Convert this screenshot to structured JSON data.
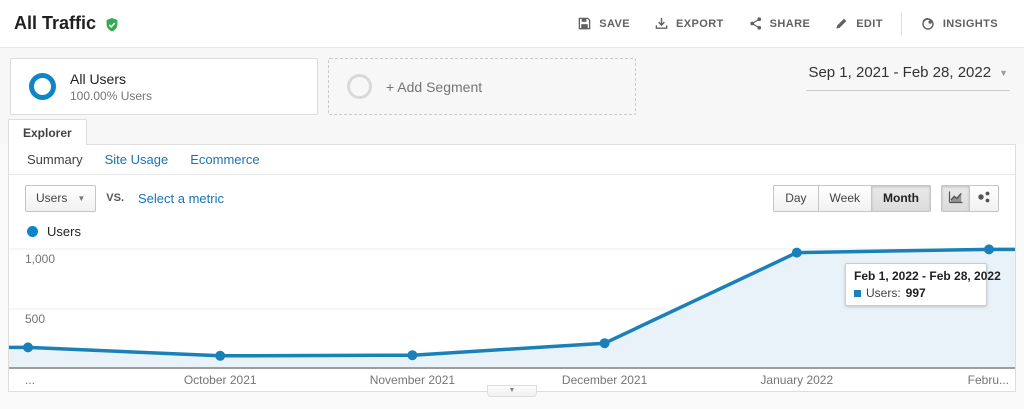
{
  "header": {
    "title": "All Traffic",
    "toolbar": [
      {
        "label": "SAVE"
      },
      {
        "label": "EXPORT"
      },
      {
        "label": "SHARE"
      },
      {
        "label": "EDIT"
      },
      {
        "label": "INSIGHTS"
      }
    ]
  },
  "segments": {
    "all_users": {
      "title": "All Users",
      "subtitle": "100.00% Users"
    },
    "add_segment": {
      "label": "+ Add Segment"
    }
  },
  "date_range": {
    "label": "Sep 1, 2021 - Feb 28, 2022"
  },
  "tabs": {
    "explorer": "Explorer"
  },
  "subnav": [
    {
      "label": "Summary"
    },
    {
      "label": "Site Usage"
    },
    {
      "label": "Ecommerce"
    }
  ],
  "controls": {
    "metric_selector": "Users",
    "vs_label": "vs.",
    "select_metric_label": "Select a metric",
    "granularity": [
      "Day",
      "Week",
      "Month"
    ],
    "granularity_active": "Month"
  },
  "legend": {
    "label": "Users"
  },
  "tooltip": {
    "title": "Feb 1, 2022 - Feb 28, 2022",
    "series_label": "Users:",
    "value": "997"
  },
  "chart_data": {
    "type": "line",
    "x": [
      "Sep 2021",
      "Oct 2021",
      "Nov 2021",
      "Dec 2021",
      "Jan 2022",
      "Feb 2022"
    ],
    "x_tick_labels": [
      "...",
      "October 2021",
      "November 2021",
      "December 2021",
      "January 2022",
      "Febru..."
    ],
    "series": [
      {
        "name": "Users",
        "values": [
          180,
          110,
          115,
          215,
          970,
          997
        ]
      }
    ],
    "ylim": [
      0,
      1000
    ],
    "yticks": [
      1000,
      500
    ],
    "ytick_labels": [
      "1,000",
      "500"
    ],
    "grid": true,
    "legend_position": "top-left",
    "line_color": "#1a80b8",
    "area_color": "#e9f1f9",
    "point_color": "#1a80b8",
    "baseline_color": "#9e9e9e"
  },
  "colors": {
    "accent_blue": "#0d85c6",
    "link_blue": "#1a73b4",
    "verified_green": "#34a853",
    "axis_text": "#757575"
  }
}
